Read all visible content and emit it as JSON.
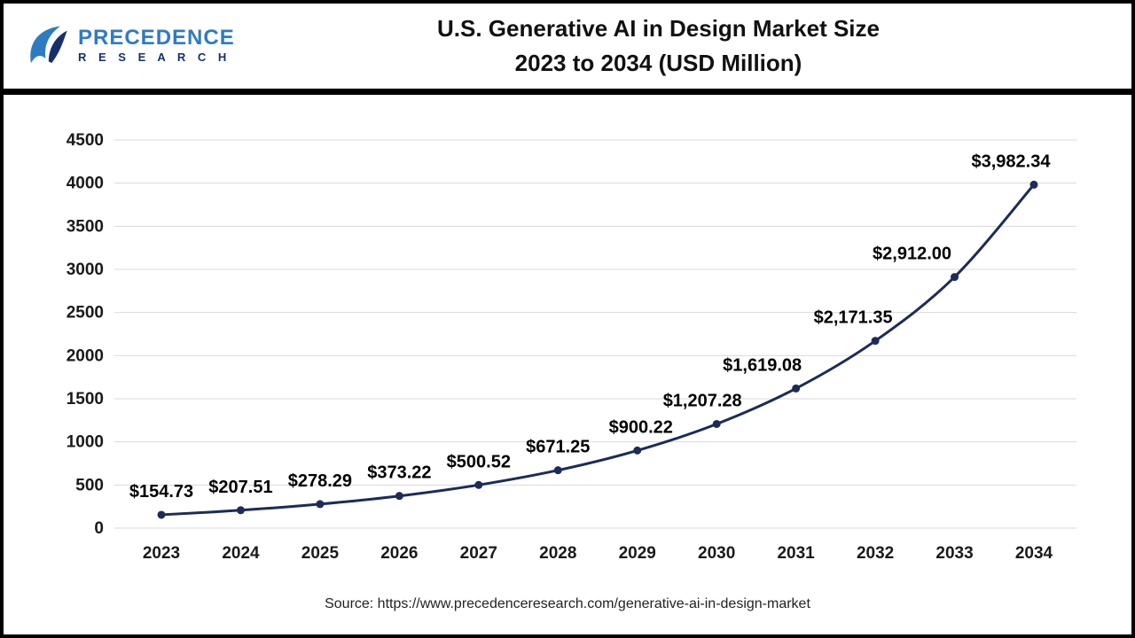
{
  "header": {
    "logo": {
      "line1": "PRECEDENCE",
      "line2": "R E S E A R C H"
    },
    "title_line1": "U.S. Generative AI in Design Market Size",
    "title_line2": "2023 to 2034 (USD Million)"
  },
  "chart_data": {
    "type": "line",
    "title": "U.S. Generative AI in Design Market Size 2023 to 2034 (USD Million)",
    "x": [
      "2023",
      "2024",
      "2025",
      "2026",
      "2027",
      "2028",
      "2029",
      "2030",
      "2031",
      "2032",
      "2033",
      "2034"
    ],
    "values": [
      154.73,
      207.51,
      278.29,
      373.22,
      500.52,
      671.25,
      900.22,
      1207.28,
      1619.08,
      2171.35,
      2912.0,
      3982.34
    ],
    "labels": [
      "$154.73",
      "$207.51",
      "$278.29",
      "$373.22",
      "$500.52",
      "$671.25",
      "$900.22",
      "$1,207.28",
      "$1,619.08",
      "$2,171.35",
      "$2,912.00",
      "$3,982.34"
    ],
    "xlabel": "",
    "ylabel": "",
    "ylim": [
      0,
      4500
    ],
    "ytick_step": 500,
    "grid": true,
    "legend": "none",
    "line_color": "#1c2b5a",
    "grid_color": "#d9d9d9",
    "label_color": "#000000",
    "label_dx": [
      0,
      0,
      0,
      0,
      0,
      0,
      4,
      -16,
      -38,
      -25,
      -48,
      -26
    ]
  },
  "footer": {
    "source": "Source: https://www.precedenceresearch.com/generative-ai-in-design-market"
  }
}
